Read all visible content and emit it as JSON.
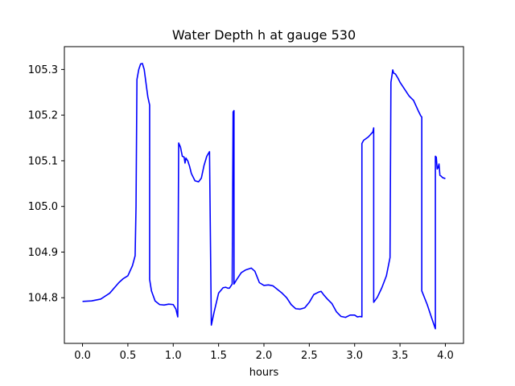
{
  "chart_data": {
    "type": "line",
    "title": "Water Depth h at gauge 530",
    "xlabel": "hours",
    "ylabel": "",
    "xlim": [
      -0.2,
      4.2
    ],
    "ylim": [
      104.7,
      105.35
    ],
    "xticks": [
      0.0,
      0.5,
      1.0,
      1.5,
      2.0,
      2.5,
      3.0,
      3.5,
      4.0
    ],
    "xtick_labels": [
      "0.0",
      "0.5",
      "1.0",
      "1.5",
      "2.0",
      "2.5",
      "3.0",
      "3.5",
      "4.0"
    ],
    "yticks": [
      104.8,
      104.9,
      105.0,
      105.1,
      105.2,
      105.3
    ],
    "ytick_labels": [
      "104.8",
      "104.9",
      "105.0",
      "105.1",
      "105.2",
      "105.3"
    ],
    "grid": false,
    "colors": {
      "line": "#0000ff"
    },
    "series": [
      {
        "name": "",
        "x": [
          0.0,
          0.1,
          0.2,
          0.3,
          0.4,
          0.45,
          0.5,
          0.55,
          0.58,
          0.59,
          0.6,
          0.62,
          0.64,
          0.66,
          0.68,
          0.7,
          0.72,
          0.74,
          0.74,
          0.76,
          0.8,
          0.85,
          0.9,
          0.95,
          1.0,
          1.03,
          1.05,
          1.06,
          1.06,
          1.08,
          1.1,
          1.12,
          1.13,
          1.14,
          1.16,
          1.18,
          1.2,
          1.24,
          1.28,
          1.31,
          1.34,
          1.37,
          1.4,
          1.42,
          1.42,
          1.45,
          1.5,
          1.55,
          1.58,
          1.6,
          1.62,
          1.65,
          1.66,
          1.67,
          1.67,
          1.7,
          1.75,
          1.8,
          1.86,
          1.9,
          1.95,
          2.0,
          2.05,
          2.1,
          2.15,
          2.2,
          2.25,
          2.3,
          2.35,
          2.4,
          2.45,
          2.5,
          2.55,
          2.6,
          2.63,
          2.66,
          2.7,
          2.75,
          2.8,
          2.85,
          2.9,
          2.95,
          3.0,
          3.03,
          3.06,
          3.08,
          3.08,
          3.1,
          3.15,
          3.2,
          3.21,
          3.21,
          3.25,
          3.3,
          3.35,
          3.39,
          3.4,
          3.41,
          3.42,
          3.43,
          3.45,
          3.48,
          3.5,
          3.55,
          3.6,
          3.65,
          3.7,
          3.73,
          3.74,
          3.74,
          3.8,
          3.85,
          3.89,
          3.89,
          3.9,
          3.91,
          3.92,
          3.93,
          3.94,
          3.95,
          3.97,
          4.0
        ],
        "y": [
          104.792,
          104.793,
          104.797,
          104.81,
          104.833,
          104.842,
          104.848,
          104.87,
          104.892,
          105.0,
          105.278,
          105.3,
          105.312,
          105.313,
          105.3,
          105.27,
          105.24,
          105.222,
          104.84,
          104.815,
          104.793,
          104.785,
          104.784,
          104.786,
          104.785,
          104.775,
          104.758,
          105.139,
          105.139,
          105.13,
          105.11,
          105.108,
          105.095,
          105.106,
          105.1,
          105.088,
          105.072,
          105.056,
          105.054,
          105.062,
          105.09,
          105.11,
          105.12,
          104.74,
          104.74,
          104.768,
          104.81,
          104.822,
          104.823,
          104.821,
          104.821,
          104.83,
          105.207,
          105.21,
          104.83,
          104.84,
          104.855,
          104.861,
          104.865,
          104.858,
          104.833,
          104.827,
          104.828,
          104.826,
          104.818,
          104.81,
          104.8,
          104.785,
          104.776,
          104.775,
          104.778,
          104.79,
          104.807,
          104.812,
          104.814,
          104.806,
          104.797,
          104.787,
          104.769,
          104.759,
          104.757,
          104.762,
          104.762,
          104.758,
          104.759,
          104.758,
          105.138,
          105.145,
          105.152,
          105.163,
          105.172,
          104.79,
          104.801,
          104.822,
          104.848,
          104.888,
          105.272,
          105.285,
          105.299,
          105.292,
          105.29,
          105.28,
          105.272,
          105.257,
          105.242,
          105.232,
          105.21,
          105.198,
          105.196,
          104.815,
          104.785,
          104.755,
          104.732,
          105.11,
          105.108,
          105.082,
          105.085,
          105.093,
          105.068,
          105.067,
          105.063,
          105.061
        ]
      }
    ]
  }
}
